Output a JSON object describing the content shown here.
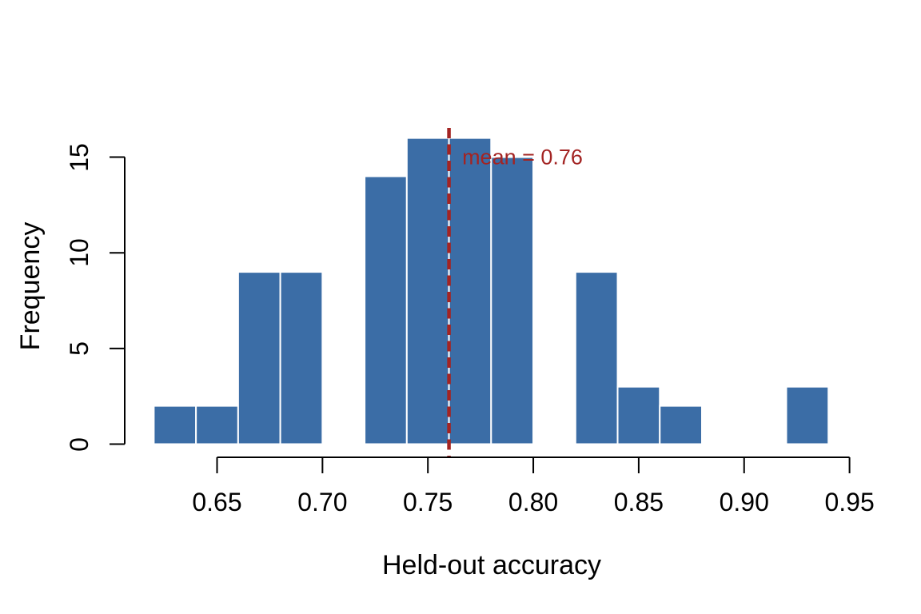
{
  "figure": {
    "background": "#ffffff",
    "axis_color": "#000000"
  },
  "chart_data": {
    "type": "bar",
    "subtype": "histogram",
    "title": "",
    "xlabel": "Held-out accuracy",
    "ylabel": "Frequency",
    "bin_edges": [
      0.62,
      0.64,
      0.66,
      0.68,
      0.7,
      0.72,
      0.74,
      0.76,
      0.78,
      0.8,
      0.82,
      0.84,
      0.86,
      0.88,
      0.9,
      0.92,
      0.94
    ],
    "counts": [
      2,
      2,
      9,
      9,
      0,
      14,
      16,
      16,
      15,
      0,
      9,
      3,
      2,
      0,
      0,
      3
    ],
    "total_n": 100,
    "x_tick_values": [
      0.65,
      0.7,
      0.75,
      0.8,
      0.85,
      0.9,
      0.95
    ],
    "x_tick_labels": [
      "0.65",
      "0.70",
      "0.75",
      "0.80",
      "0.85",
      "0.90",
      "0.95"
    ],
    "y_tick_values": [
      0,
      5,
      10,
      15
    ],
    "y_tick_labels": [
      "0",
      "5",
      "10",
      "15"
    ],
    "xlim": [
      0.62,
      0.94
    ],
    "ylim": [
      0,
      16
    ],
    "grid": false,
    "legend": null,
    "bar_fill": "#3B6DA6",
    "bar_border": "#FFFFFF",
    "mean_line": {
      "value": 0.76,
      "label": "mean = 0.76",
      "color": "#A32423",
      "style": "dashed"
    }
  }
}
